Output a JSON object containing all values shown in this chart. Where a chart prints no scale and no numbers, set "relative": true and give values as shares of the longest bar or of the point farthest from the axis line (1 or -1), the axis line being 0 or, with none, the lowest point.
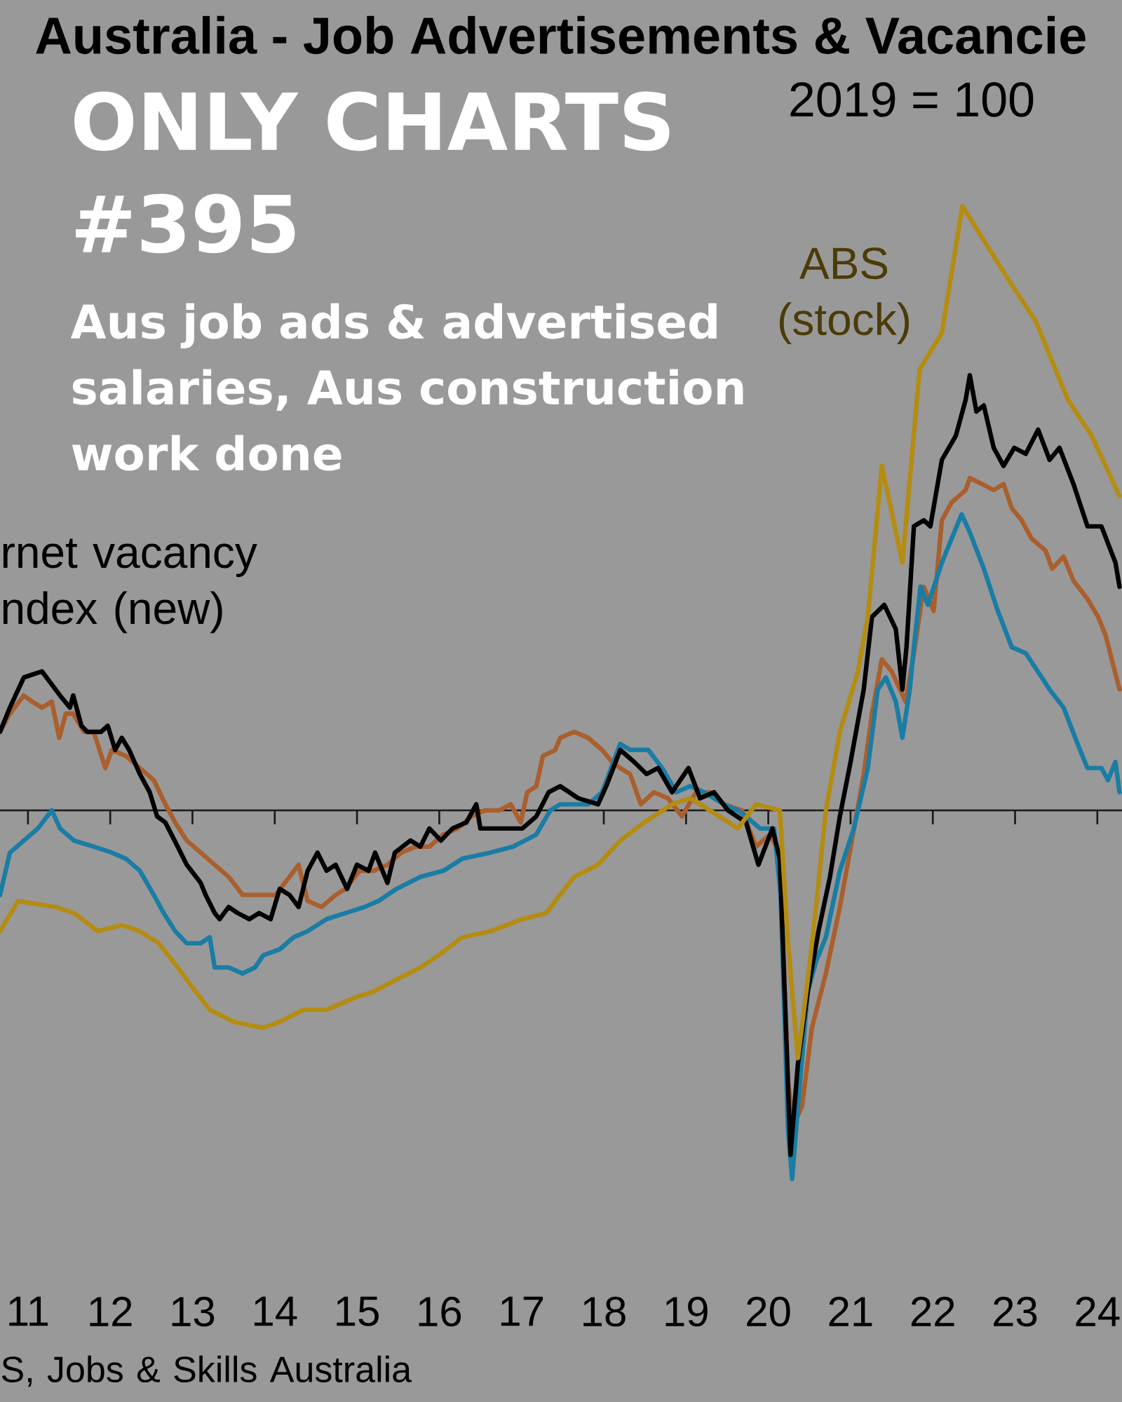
{
  "chart_data": {
    "type": "line",
    "title": "Australia - Job Advertisements & Vacancie",
    "subtitle": "2019 = 100",
    "annotations": [
      "ONLY CHARTS #395",
      "Aus job ads & advertised salaries, Aus construction work done",
      "S, Jobs & Skills Australia"
    ],
    "relative": true,
    "xlim": [
      2010.66,
      2024.3
    ],
    "xticks": [
      {
        "value": 2011,
        "label": "11"
      },
      {
        "value": 2012,
        "label": "12"
      },
      {
        "value": 2013,
        "label": "13"
      },
      {
        "value": 2014,
        "label": "14"
      },
      {
        "value": 2015,
        "label": "15"
      },
      {
        "value": 2016,
        "label": "16"
      },
      {
        "value": 2017,
        "label": "17"
      },
      {
        "value": 2018,
        "label": "18"
      },
      {
        "value": 2019,
        "label": "19"
      },
      {
        "value": 2020,
        "label": "20"
      },
      {
        "value": 2021,
        "label": "21"
      },
      {
        "value": 2022,
        "label": "22"
      },
      {
        "value": 2023,
        "label": "23"
      },
      {
        "value": 2024,
        "label": "24"
      }
    ],
    "series": [
      {
        "color": "#aa5f2d",
        "x": [
          2010.66,
          2010.78,
          2010.95,
          2011.05,
          2011.17,
          2011.29,
          2011.38,
          2011.46,
          2011.55,
          2011.68,
          2011.8,
          2011.94,
          2012.02,
          2012.19,
          2012.36,
          2012.53,
          2012.67,
          2012.79,
          2012.93,
          2013.1,
          2013.27,
          2013.44,
          2013.61,
          2013.84,
          2014.01,
          2014.18,
          2014.29,
          2014.4,
          2014.57,
          2014.74,
          2014.86,
          2015.03,
          2015.2,
          2015.37,
          2015.54,
          2015.71,
          2015.88,
          2016.05,
          2016.22,
          2016.39,
          2016.56,
          2016.73,
          2016.87,
          2016.99,
          2017.07,
          2017.18,
          2017.26,
          2017.41,
          2017.47,
          2017.64,
          2017.81,
          2017.98,
          2018.1,
          2018.2,
          2018.32,
          2018.45,
          2018.61,
          2018.78,
          2018.95,
          2019.12,
          2019.29,
          2019.46,
          2019.68,
          2019.85,
          2020.02,
          2020.14,
          2020.24,
          2020.31,
          2020.41,
          2020.53,
          2020.7,
          2020.87,
          2020.99,
          2021.16,
          2021.26,
          2021.38,
          2021.5,
          2021.67,
          2021.77,
          2021.89,
          2022.01,
          2022.11,
          2022.23,
          2022.4,
          2022.45,
          2022.6,
          2022.74,
          2022.86,
          2022.96,
          2023.08,
          2023.2,
          2023.37,
          2023.45,
          2023.59,
          2023.71,
          2023.88,
          2024.01,
          2024.1,
          2024.27
        ],
        "values": [
          0.13,
          0.16,
          0.19,
          0.18,
          0.17,
          0.18,
          0.12,
          0.16,
          0.16,
          0.13,
          0.13,
          0.07,
          0.1,
          0.09,
          0.07,
          0.05,
          0.01,
          -0.02,
          -0.05,
          -0.07,
          -0.09,
          -0.11,
          -0.14,
          -0.14,
          -0.14,
          -0.11,
          -0.09,
          -0.15,
          -0.16,
          -0.14,
          -0.13,
          -0.1,
          -0.1,
          -0.09,
          -0.07,
          -0.06,
          -0.06,
          -0.04,
          -0.03,
          -0.01,
          0.0,
          0.0,
          0.01,
          -0.02,
          0.03,
          0.04,
          0.09,
          0.1,
          0.12,
          0.13,
          0.12,
          0.1,
          0.08,
          0.07,
          0.06,
          0.01,
          0.03,
          0.02,
          -0.01,
          0.03,
          0.03,
          0.01,
          0.0,
          -0.06,
          -0.04,
          -0.07,
          -0.45,
          -0.52,
          -0.49,
          -0.36,
          -0.27,
          -0.16,
          -0.07,
          0.06,
          0.16,
          0.25,
          0.23,
          0.18,
          0.26,
          0.37,
          0.33,
          0.48,
          0.51,
          0.53,
          0.55,
          0.54,
          0.53,
          0.54,
          0.5,
          0.48,
          0.45,
          0.43,
          0.4,
          0.42,
          0.38,
          0.35,
          0.32,
          0.29,
          0.2
        ]
      },
      {
        "color": "#197da5",
        "x": [
          2010.66,
          2010.78,
          2010.95,
          2011.12,
          2011.29,
          2011.39,
          2011.56,
          2011.8,
          2012.02,
          2012.19,
          2012.36,
          2012.53,
          2012.65,
          2012.79,
          2012.93,
          2013.1,
          2013.21,
          2013.27,
          2013.44,
          2013.61,
          2013.76,
          2013.86,
          2014.06,
          2014.23,
          2014.4,
          2014.63,
          2014.86,
          2015.09,
          2015.26,
          2015.48,
          2015.77,
          2016.05,
          2016.28,
          2016.62,
          2016.9,
          2017.18,
          2017.35,
          2017.47,
          2017.81,
          2017.98,
          2018.2,
          2018.32,
          2018.54,
          2018.71,
          2018.88,
          2019.05,
          2019.22,
          2019.46,
          2019.63,
          2019.73,
          2019.9,
          2020.07,
          2020.15,
          2020.24,
          2020.29,
          2020.36,
          2020.48,
          2020.58,
          2020.7,
          2020.87,
          2021.04,
          2021.21,
          2021.33,
          2021.43,
          2021.55,
          2021.63,
          2021.72,
          2021.77,
          2021.85,
          2021.94,
          2022.11,
          2022.35,
          2022.45,
          2022.62,
          2022.79,
          2022.96,
          2023.13,
          2023.42,
          2023.59,
          2023.76,
          2023.88,
          2024.05,
          2024.13,
          2024.22,
          2024.27
        ],
        "values": [
          -0.14,
          -0.07,
          -0.05,
          -0.03,
          0.0,
          -0.03,
          -0.05,
          -0.06,
          -0.07,
          -0.08,
          -0.1,
          -0.14,
          -0.17,
          -0.2,
          -0.22,
          -0.22,
          -0.21,
          -0.26,
          -0.26,
          -0.27,
          -0.26,
          -0.24,
          -0.23,
          -0.21,
          -0.2,
          -0.18,
          -0.17,
          -0.16,
          -0.15,
          -0.13,
          -0.11,
          -0.1,
          -0.08,
          -0.07,
          -0.06,
          -0.04,
          0.0,
          0.01,
          0.01,
          0.03,
          0.11,
          0.1,
          0.1,
          0.07,
          0.03,
          0.04,
          0.03,
          0.01,
          0.0,
          -0.01,
          -0.03,
          -0.03,
          -0.14,
          -0.53,
          -0.61,
          -0.49,
          -0.3,
          -0.25,
          -0.21,
          -0.1,
          -0.03,
          0.07,
          0.2,
          0.22,
          0.18,
          0.12,
          0.2,
          0.27,
          0.37,
          0.34,
          0.41,
          0.49,
          0.46,
          0.4,
          0.33,
          0.27,
          0.26,
          0.2,
          0.17,
          0.11,
          0.07,
          0.07,
          0.05,
          0.08,
          0.03
        ]
      },
      {
        "name": "rnet vacancy ndex (new)",
        "color": "#000000",
        "x": [
          2010.66,
          2010.78,
          2010.95,
          2011.17,
          2011.39,
          2011.51,
          2011.55,
          2011.65,
          2011.72,
          2011.89,
          2011.97,
          2012.06,
          2012.14,
          2012.23,
          2012.36,
          2012.48,
          2012.57,
          2012.67,
          2012.82,
          2012.93,
          2013.1,
          2013.16,
          2013.27,
          2013.33,
          2013.44,
          2013.55,
          2013.69,
          2013.81,
          2013.95,
          2014.06,
          2014.18,
          2014.29,
          2014.4,
          2014.52,
          2014.63,
          2014.74,
          2014.88,
          2015.0,
          2015.14,
          2015.22,
          2015.37,
          2015.46,
          2015.65,
          2015.77,
          2015.88,
          2016.02,
          2016.16,
          2016.33,
          2016.45,
          2016.5,
          2016.67,
          2016.84,
          2017.01,
          2017.18,
          2017.33,
          2017.47,
          2017.69,
          2017.93,
          2018.03,
          2018.2,
          2018.37,
          2018.52,
          2018.66,
          2018.83,
          2019.03,
          2019.17,
          2019.34,
          2019.51,
          2019.73,
          2019.88,
          2020.05,
          2020.14,
          2020.22,
          2020.27,
          2020.36,
          2020.48,
          2020.61,
          2020.75,
          2020.87,
          2021.0,
          2021.16,
          2021.26,
          2021.41,
          2021.55,
          2021.63,
          2021.68,
          2021.77,
          2021.89,
          2021.97,
          2022.11,
          2022.28,
          2022.4,
          2022.45,
          2022.53,
          2022.62,
          2022.74,
          2022.86,
          2022.99,
          2023.13,
          2023.28,
          2023.42,
          2023.54,
          2023.71,
          2023.88,
          2024.05,
          2024.22,
          2024.27
        ],
        "values": [
          0.13,
          0.17,
          0.22,
          0.23,
          0.19,
          0.17,
          0.19,
          0.14,
          0.13,
          0.13,
          0.14,
          0.1,
          0.12,
          0.1,
          0.06,
          0.03,
          -0.01,
          -0.02,
          -0.06,
          -0.09,
          -0.12,
          -0.14,
          -0.17,
          -0.18,
          -0.16,
          -0.17,
          -0.18,
          -0.17,
          -0.18,
          -0.13,
          -0.14,
          -0.16,
          -0.1,
          -0.07,
          -0.1,
          -0.09,
          -0.13,
          -0.09,
          -0.1,
          -0.07,
          -0.12,
          -0.07,
          -0.05,
          -0.06,
          -0.03,
          -0.05,
          -0.03,
          -0.02,
          0.01,
          -0.03,
          -0.03,
          -0.03,
          -0.03,
          -0.01,
          0.03,
          0.04,
          0.02,
          0.01,
          0.04,
          0.1,
          0.08,
          0.06,
          0.07,
          0.03,
          0.07,
          0.02,
          0.03,
          0.0,
          -0.02,
          -0.09,
          -0.03,
          -0.08,
          -0.38,
          -0.57,
          -0.42,
          -0.3,
          -0.2,
          -0.11,
          -0.01,
          0.08,
          0.2,
          0.32,
          0.34,
          0.3,
          0.2,
          0.27,
          0.47,
          0.48,
          0.47,
          0.58,
          0.62,
          0.68,
          0.72,
          0.66,
          0.67,
          0.6,
          0.57,
          0.6,
          0.59,
          0.63,
          0.58,
          0.6,
          0.54,
          0.47,
          0.47,
          0.41,
          0.37
        ]
      },
      {
        "name": "ABS (stock)",
        "color": "#b48c10",
        "x": [
          2010.66,
          2010.88,
          2011.34,
          2011.56,
          2011.85,
          2012.14,
          2012.36,
          2012.59,
          2012.82,
          2013.04,
          2013.21,
          2013.5,
          2013.86,
          2014.06,
          2014.35,
          2014.63,
          2014.97,
          2015.2,
          2015.48,
          2015.77,
          2015.99,
          2016.28,
          2016.62,
          2017.01,
          2017.3,
          2017.41,
          2017.64,
          2017.93,
          2018.2,
          2018.49,
          2018.83,
          2019.05,
          2019.29,
          2019.63,
          2019.85,
          2020.14,
          2020.24,
          2020.36,
          2020.48,
          2020.58,
          2020.7,
          2020.87,
          2021.09,
          2021.21,
          2021.38,
          2021.63,
          2021.84,
          2022.11,
          2022.36,
          2022.91,
          2023.25,
          2023.64,
          2023.93,
          2024.27
        ],
        "values": [
          -0.2,
          -0.15,
          -0.16,
          -0.17,
          -0.2,
          -0.19,
          -0.2,
          -0.22,
          -0.26,
          -0.3,
          -0.33,
          -0.35,
          -0.36,
          -0.35,
          -0.33,
          -0.33,
          -0.31,
          -0.3,
          -0.28,
          -0.26,
          -0.24,
          -0.21,
          -0.2,
          -0.18,
          -0.17,
          -0.15,
          -0.11,
          -0.09,
          -0.05,
          -0.02,
          0.01,
          0.02,
          0.0,
          -0.03,
          0.01,
          0.0,
          -0.22,
          -0.41,
          -0.28,
          -0.16,
          0.0,
          0.13,
          0.23,
          0.32,
          0.57,
          0.41,
          0.73,
          0.79,
          1.0,
          0.88,
          0.81,
          0.68,
          0.62,
          0.52
        ]
      }
    ]
  }
}
